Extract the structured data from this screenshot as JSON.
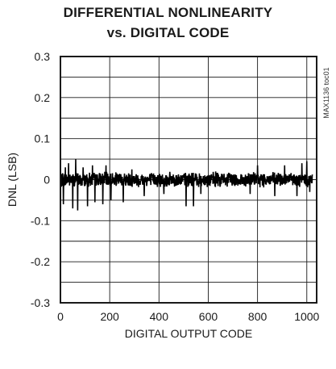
{
  "chart_data": {
    "type": "line",
    "title": "DIFFERENTIAL NONLINEARITY",
    "subtitle": "vs. DIGITAL CODE",
    "xlabel": "DIGITAL OUTPUT CODE",
    "ylabel": "DNL (LSB)",
    "xlim": [
      0,
      1040
    ],
    "ylim": [
      -0.3,
      0.3
    ],
    "x_ticks": [
      "0",
      "200",
      "400",
      "600",
      "800",
      "1000"
    ],
    "y_ticks": [
      "0.3",
      "0.2",
      "0.1",
      "0",
      "-0.1",
      "-0.2",
      "-0.3"
    ],
    "grid": true,
    "noise_band": 0.02,
    "spikes": [
      {
        "code": 12,
        "value": -0.06
      },
      {
        "code": 20,
        "value": 0.03
      },
      {
        "code": 33,
        "value": 0.04
      },
      {
        "code": 50,
        "value": -0.07
      },
      {
        "code": 62,
        "value": 0.05
      },
      {
        "code": 70,
        "value": -0.075
      },
      {
        "code": 92,
        "value": 0.03
      },
      {
        "code": 110,
        "value": -0.065
      },
      {
        "code": 130,
        "value": 0.035
      },
      {
        "code": 140,
        "value": -0.055
      },
      {
        "code": 172,
        "value": -0.06
      },
      {
        "code": 185,
        "value": 0.035
      },
      {
        "code": 205,
        "value": -0.05
      },
      {
        "code": 255,
        "value": -0.055
      },
      {
        "code": 290,
        "value": 0.025
      },
      {
        "code": 340,
        "value": -0.04
      },
      {
        "code": 420,
        "value": -0.035
      },
      {
        "code": 510,
        "value": -0.065
      },
      {
        "code": 540,
        "value": -0.065
      },
      {
        "code": 570,
        "value": -0.035
      },
      {
        "code": 630,
        "value": 0.02
      },
      {
        "code": 770,
        "value": -0.035
      },
      {
        "code": 800,
        "value": 0.035
      },
      {
        "code": 870,
        "value": -0.04
      },
      {
        "code": 910,
        "value": 0.035
      },
      {
        "code": 960,
        "value": -0.04
      },
      {
        "code": 980,
        "value": 0.04
      },
      {
        "code": 1000,
        "value": 0.045
      },
      {
        "code": 1012,
        "value": -0.03
      }
    ]
  },
  "watermark": "MAX1136 toc01"
}
